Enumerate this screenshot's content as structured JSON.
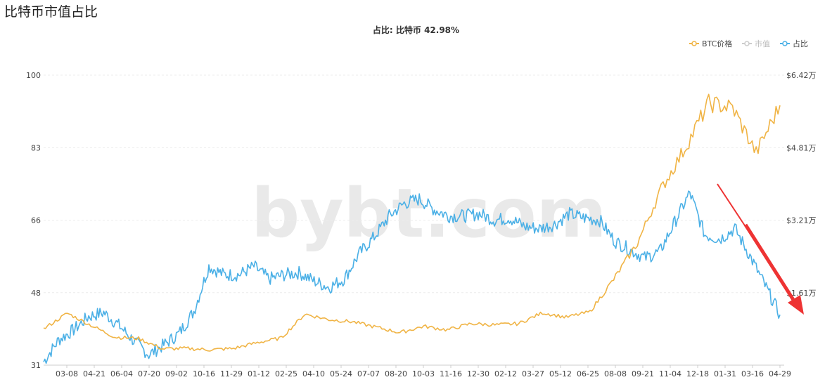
{
  "page": {
    "title": "比特币市值占比"
  },
  "chart_data": {
    "type": "line",
    "title": "占比: 比特币 42.98%",
    "watermark": "bybt.com",
    "legend": {
      "position": "top-right",
      "items": [
        {
          "name": "BTC价格",
          "color": "#f0b445",
          "active": true
        },
        {
          "name": "市值",
          "color": "#c8c8c8",
          "active": false
        },
        {
          "name": "占比",
          "color": "#4bb0e6",
          "active": true
        }
      ]
    },
    "x_labels": [
      "03-08",
      "04-21",
      "06-04",
      "07-20",
      "09-02",
      "10-16",
      "11-29",
      "01-12",
      "02-25",
      "04-10",
      "05-24",
      "07-07",
      "08-20",
      "10-03",
      "11-16",
      "12-30",
      "02-12",
      "03-27",
      "05-12",
      "06-25",
      "08-08",
      "09-21",
      "11-04",
      "12-18",
      "01-31",
      "03-16",
      "04-29"
    ],
    "y_left": {
      "ticks": [
        "31",
        "48",
        "66",
        "83",
        "100"
      ],
      "range": [
        31,
        100
      ]
    },
    "y_right": {
      "ticks": [
        "",
        "$1.61万",
        "$3.21万",
        "$4.81万",
        "$6.42万"
      ],
      "range": [
        0,
        64200
      ]
    },
    "grid": true,
    "series": [
      {
        "name": "占比",
        "axis": "left",
        "color": "#4bb0e6",
        "values": [
          31.8,
          37.0,
          39.4,
          42.6,
          43.5,
          40.5,
          36.8,
          33.5,
          35.8,
          38.5,
          43.8,
          54.5,
          52.5,
          52.5,
          54.5,
          51.5,
          52.5,
          53.0,
          51.0,
          49.5,
          51.5,
          57.5,
          61.5,
          66.5,
          69.5,
          70.5,
          68.0,
          66.5,
          66.5,
          67.0,
          65.5,
          66.0,
          64.0,
          63.5,
          64.5,
          67.0,
          66.0,
          65.5,
          60.5,
          58.5,
          56.5,
          58.0,
          65.0,
          72.0,
          62.0,
          61.0,
          63.5,
          57.0,
          50.0,
          43.0
        ]
      },
      {
        "name": "BTC价格",
        "axis": "right",
        "color": "#f0b445",
        "values": [
          8000,
          11500,
          8800,
          6200,
          5900,
          3600,
          3700,
          3400,
          3700,
          5000,
          6000,
          11300,
          10100,
          9600,
          8400,
          7200,
          8600,
          7800,
          9200,
          8900,
          9200,
          11600,
          10600,
          11800,
          19000,
          27000,
          39000,
          48000,
          58000,
          57000,
          47000,
          57500
        ]
      }
    ]
  }
}
